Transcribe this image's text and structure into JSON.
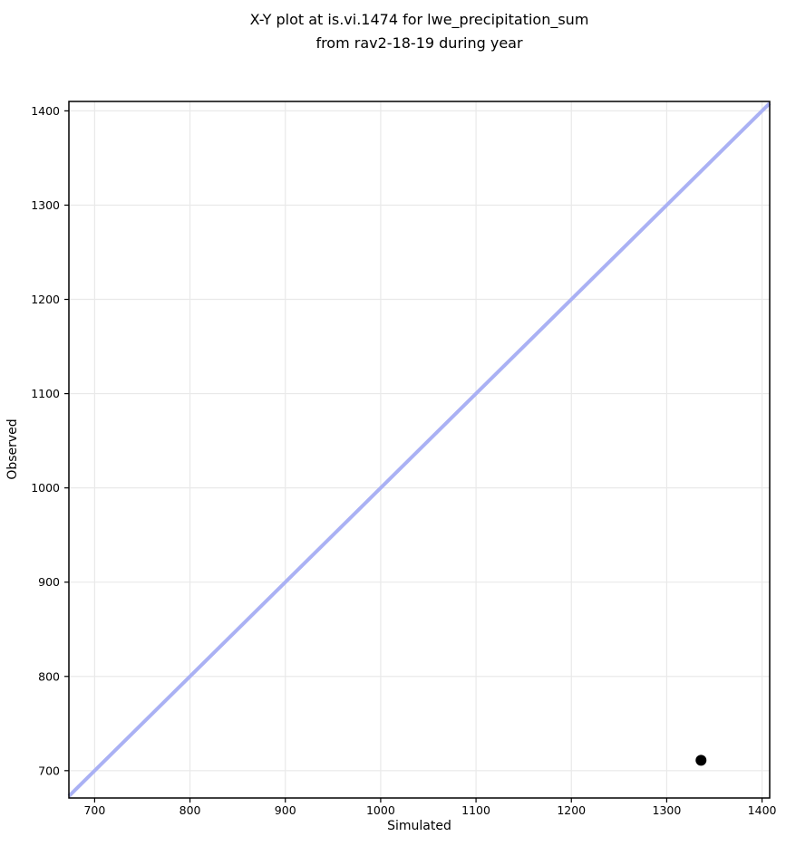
{
  "figure": {
    "title": "X-Y plot at is.vi.1474 for lwe_precipitation_sum\nfrom rav2-18-19 during year"
  },
  "chart_data": {
    "type": "scatter",
    "title": "X-Y plot at is.vi.1474 for lwe_precipitation_sum from rav2-18-19 during year",
    "xlabel": "Simulated",
    "ylabel": "Observed",
    "xlim": [
      673,
      1408
    ],
    "ylim": [
      671,
      1410
    ],
    "xticks": [
      700,
      800,
      900,
      1000,
      1100,
      1200,
      1300,
      1400
    ],
    "yticks": [
      700,
      800,
      900,
      1000,
      1100,
      1200,
      1300,
      1400
    ],
    "grid": true,
    "legend": "none",
    "points": [
      {
        "x": 1336,
        "y": 711
      }
    ],
    "identity_line": {
      "x1": 673,
      "y1": 673,
      "x2": 1408,
      "y2": 1408
    },
    "colors": {
      "identity_line": "#aab1f4",
      "marker": "#000000",
      "grid": "#e9e9e9",
      "spine": "#000000",
      "background": "#ffffff"
    }
  }
}
